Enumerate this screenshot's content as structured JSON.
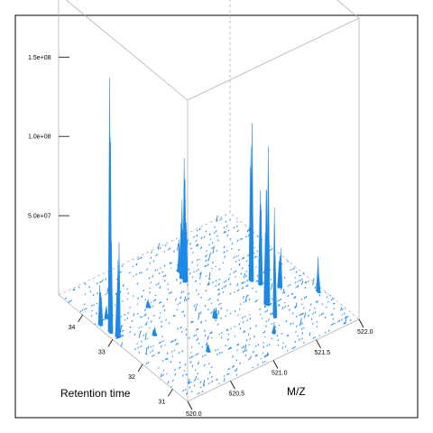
{
  "chart_data": {
    "type": "3d-surface",
    "xlabel": "M/Z",
    "ylabel": "Retention time",
    "zlabel": "",
    "x_ticks": [
      "520.0",
      "520.5",
      "521.0",
      "521.5",
      "522.0"
    ],
    "y_ticks": [
      "31",
      "32",
      "33",
      "34"
    ],
    "z_ticks": [
      "5.0e+07",
      "1.0e+08",
      "1.5e+08"
    ],
    "xlim": [
      520.0,
      522.0
    ],
    "ylim": [
      30.5,
      34.8
    ],
    "zlim": [
      0,
      190000000
    ],
    "peaks": [
      {
        "mz": 520.05,
        "rt": 33.2,
        "intensity": 160000000
      },
      {
        "mz": 520.06,
        "rt": 33.0,
        "intensity": 60000000
      },
      {
        "mz": 520.04,
        "rt": 33.5,
        "intensity": 25000000
      },
      {
        "mz": 520.15,
        "rt": 33.6,
        "intensity": 8000000
      },
      {
        "mz": 520.35,
        "rt": 32.6,
        "intensity": 6000000
      },
      {
        "mz": 520.55,
        "rt": 33.4,
        "intensity": 5000000
      },
      {
        "mz": 520.95,
        "rt": 32.3,
        "intensity": 7000000
      },
      {
        "mz": 521.05,
        "rt": 33.6,
        "intensity": 78000000
      },
      {
        "mz": 521.06,
        "rt": 33.7,
        "intensity": 50000000
      },
      {
        "mz": 521.1,
        "rt": 33.9,
        "intensity": 20000000
      },
      {
        "mz": 521.4,
        "rt": 31.6,
        "intensity": 68000000
      },
      {
        "mz": 521.45,
        "rt": 32.0,
        "intensity": 100000000
      },
      {
        "mz": 521.55,
        "rt": 32.8,
        "intensity": 100000000
      },
      {
        "mz": 521.58,
        "rt": 32.6,
        "intensity": 60000000
      },
      {
        "mz": 521.7,
        "rt": 32.3,
        "intensity": 25000000
      },
      {
        "mz": 521.95,
        "rt": 31.7,
        "intensity": 22000000
      },
      {
        "mz": 521.25,
        "rt": 31.2,
        "intensity": 6000000
      },
      {
        "mz": 520.6,
        "rt": 31.5,
        "intensity": 5000000
      }
    ],
    "color": "#1e88e5",
    "grid": false
  }
}
